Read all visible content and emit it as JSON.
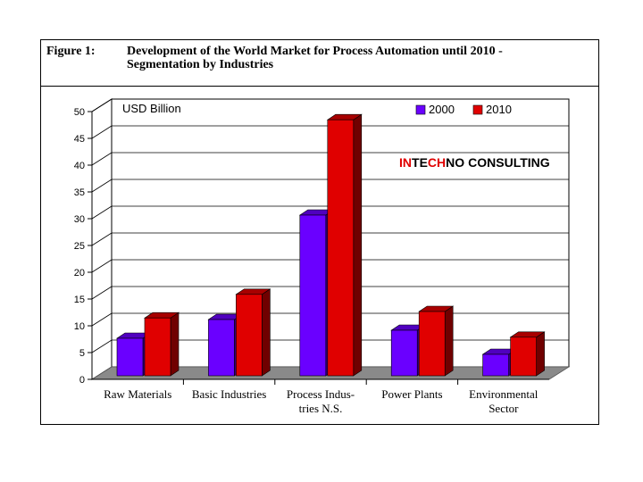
{
  "figure": {
    "label": "Figure 1:",
    "title": "Development of the World Market for Process Automation until 2010 - Segmentation by Industries"
  },
  "branding": {
    "logo": "INTECHNO CONSULTING"
  },
  "colors": {
    "series_2000": "#6a00ff",
    "series_2010": "#e00000",
    "floor": "#8a8a8a",
    "wall": "#ffffff"
  },
  "chart_data": {
    "type": "bar",
    "unit_label": "USD Billion",
    "categories": [
      [
        "Raw Materials"
      ],
      [
        "Basic Industries"
      ],
      [
        "Process Indus-",
        "tries N.S."
      ],
      [
        "Power Plants"
      ],
      [
        "Environmental",
        "Sector"
      ]
    ],
    "series": [
      {
        "name": "2000",
        "values": [
          7,
          10.5,
          30,
          8.5,
          4
        ]
      },
      {
        "name": "2010",
        "values": [
          10.8,
          15.2,
          47.8,
          12,
          7.2
        ]
      }
    ],
    "ylim": [
      0,
      50
    ],
    "yticks": [
      0,
      5,
      10,
      15,
      20,
      25,
      30,
      35,
      40,
      45,
      50
    ],
    "grid": true,
    "legend_position": "top-right",
    "xlabel": "",
    "ylabel": ""
  }
}
